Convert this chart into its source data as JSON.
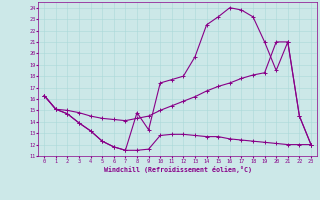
{
  "xlabel": "Windchill (Refroidissement éolien,°C)",
  "xlim": [
    -0.5,
    23.5
  ],
  "ylim": [
    11,
    24.5
  ],
  "xticks": [
    0,
    1,
    2,
    3,
    4,
    5,
    6,
    7,
    8,
    9,
    10,
    11,
    12,
    13,
    14,
    15,
    16,
    17,
    18,
    19,
    20,
    21,
    22,
    23
  ],
  "yticks": [
    11,
    12,
    13,
    14,
    15,
    16,
    17,
    18,
    19,
    20,
    21,
    22,
    23,
    24
  ],
  "bg_color": "#cce8e8",
  "line_color": "#880088",
  "line1_x": [
    0,
    1,
    2,
    3,
    4,
    5,
    6,
    7,
    8,
    9,
    10,
    11,
    12,
    13,
    14,
    15,
    16,
    17,
    18,
    19,
    20,
    21,
    22,
    23
  ],
  "line1_y": [
    16.3,
    15.1,
    14.7,
    13.9,
    13.2,
    12.3,
    11.8,
    11.5,
    11.5,
    11.6,
    12.8,
    12.9,
    12.9,
    12.8,
    12.7,
    12.7,
    12.5,
    12.4,
    12.3,
    12.2,
    12.1,
    12.0,
    12.0,
    12.0
  ],
  "line2_x": [
    0,
    1,
    2,
    3,
    4,
    5,
    6,
    7,
    8,
    9,
    10,
    11,
    12,
    13,
    14,
    15,
    16,
    17,
    18,
    19,
    20,
    21,
    22,
    23
  ],
  "line2_y": [
    16.3,
    15.1,
    14.7,
    13.9,
    13.2,
    12.3,
    11.8,
    11.5,
    14.8,
    13.3,
    17.4,
    17.7,
    18.0,
    19.7,
    22.5,
    23.2,
    24.0,
    23.8,
    23.2,
    21.0,
    18.5,
    21.0,
    14.5,
    12.0
  ],
  "line3_x": [
    0,
    1,
    2,
    3,
    4,
    5,
    6,
    7,
    8,
    9,
    10,
    11,
    12,
    13,
    14,
    15,
    16,
    17,
    18,
    19,
    20,
    21,
    22,
    23
  ],
  "line3_y": [
    16.3,
    15.1,
    15.0,
    14.8,
    14.5,
    14.3,
    14.2,
    14.1,
    14.3,
    14.5,
    15.0,
    15.4,
    15.8,
    16.2,
    16.7,
    17.1,
    17.4,
    17.8,
    18.1,
    18.3,
    21.0,
    21.0,
    14.5,
    12.0
  ]
}
